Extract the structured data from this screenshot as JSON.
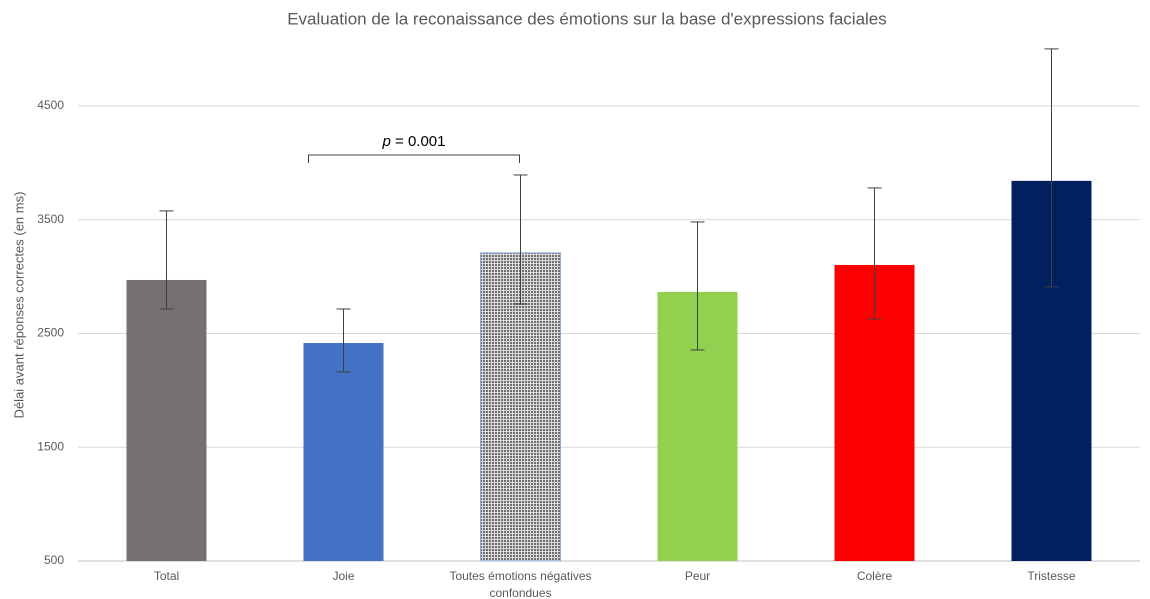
{
  "chart_data": {
    "type": "bar",
    "title": "Evaluation de la reconaissance des émotions sur la base d'expressions faciales",
    "y_label": "Délai avant réponses correctes (en ms)",
    "categories": [
      "Total",
      "Joie",
      "Toutes émotions négatives confondues",
      "Peur",
      "Colère",
      "Tristesse"
    ],
    "values": [
      2970,
      2416,
      3208,
      2865,
      3102,
      3841
    ],
    "error_plus": [
      607,
      299,
      685,
      615,
      677,
      1160
    ],
    "error_minus": [
      255,
      254,
      449,
      510,
      475,
      932
    ],
    "colors": [
      "#767171",
      "#4472c4",
      "#8c8c8c",
      "#92d050",
      "#ff0000",
      "#002060"
    ],
    "fill_patterns": [
      null,
      null,
      "dots",
      null,
      null,
      null
    ],
    "ylim": [
      500,
      5000
    ],
    "yticks": [
      500,
      1500,
      2500,
      3500,
      4500
    ],
    "grid": true,
    "annotation": {
      "italic": "p",
      "text": " = 0.001",
      "from": 1,
      "to": 2
    }
  }
}
